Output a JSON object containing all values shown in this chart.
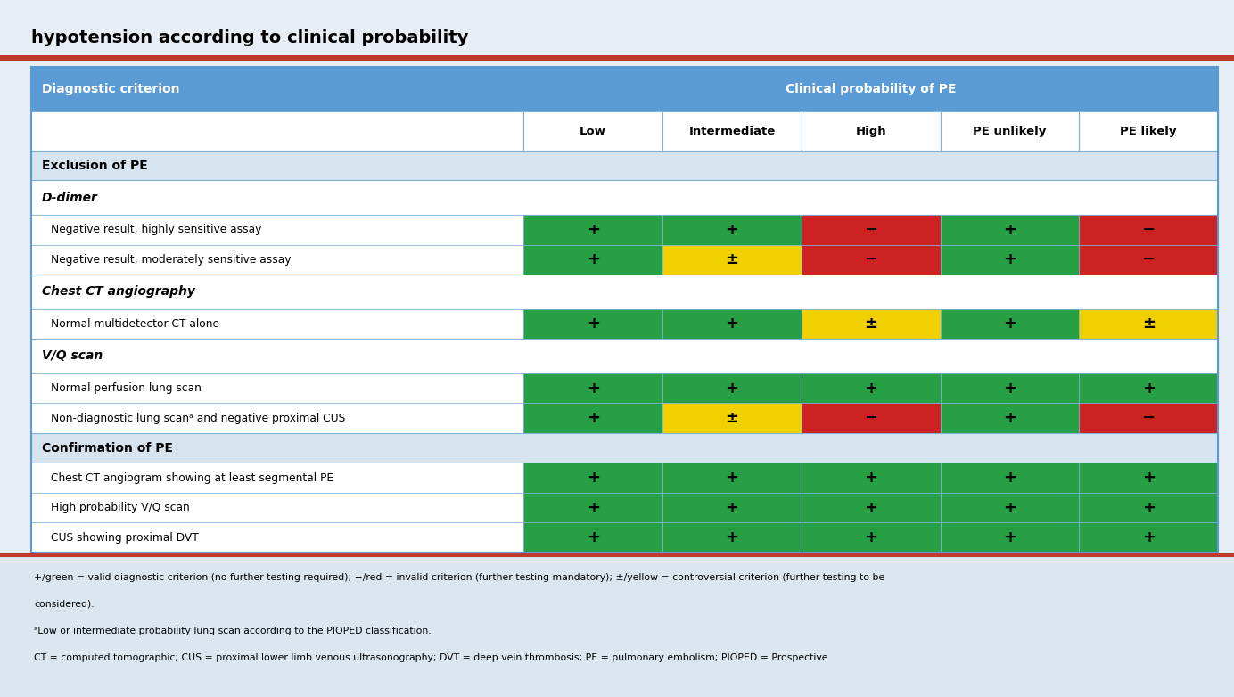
{
  "title": "hypotension according to clinical probability",
  "header_col1": "Diagnostic criterion",
  "header_col2": "Clinical probability of PE",
  "sub_headers": [
    "Low",
    "Intermediate",
    "High",
    "PE unlikely",
    "PE likely"
  ],
  "sections": [
    {
      "type": "section",
      "label": "Exclusion of PE"
    },
    {
      "type": "subsection",
      "label": "D-dimer"
    },
    {
      "type": "data",
      "label": "Negative result, highly sensitive assay",
      "cells": [
        {
          "symbol": "+",
          "color": "#27a045"
        },
        {
          "symbol": "+",
          "color": "#27a045"
        },
        {
          "symbol": "−",
          "color": "#cc2222"
        },
        {
          "symbol": "+",
          "color": "#27a045"
        },
        {
          "symbol": "−",
          "color": "#cc2222"
        }
      ]
    },
    {
      "type": "data",
      "label": "Negative result, moderately sensitive assay",
      "cells": [
        {
          "symbol": "+",
          "color": "#27a045"
        },
        {
          "symbol": "±",
          "color": "#f0d000"
        },
        {
          "symbol": "−",
          "color": "#cc2222"
        },
        {
          "symbol": "+",
          "color": "#27a045"
        },
        {
          "symbol": "−",
          "color": "#cc2222"
        }
      ]
    },
    {
      "type": "subsection",
      "label": "Chest CT angiography"
    },
    {
      "type": "data",
      "label": "Normal multidetector CT alone",
      "cells": [
        {
          "symbol": "+",
          "color": "#27a045"
        },
        {
          "symbol": "+",
          "color": "#27a045"
        },
        {
          "symbol": "±",
          "color": "#f0d000"
        },
        {
          "symbol": "+",
          "color": "#27a045"
        },
        {
          "symbol": "±",
          "color": "#f0d000"
        }
      ]
    },
    {
      "type": "subsection",
      "label": "V/Q scan"
    },
    {
      "type": "data",
      "label": "Normal perfusion lung scan",
      "cells": [
        {
          "symbol": "+",
          "color": "#27a045"
        },
        {
          "symbol": "+",
          "color": "#27a045"
        },
        {
          "symbol": "+",
          "color": "#27a045"
        },
        {
          "symbol": "+",
          "color": "#27a045"
        },
        {
          "symbol": "+",
          "color": "#27a045"
        }
      ]
    },
    {
      "type": "data",
      "label": "Non-diagnostic lung scanᵃ and negative proximal CUS",
      "cells": [
        {
          "symbol": "+",
          "color": "#27a045"
        },
        {
          "symbol": "±",
          "color": "#f0d000"
        },
        {
          "symbol": "−",
          "color": "#cc2222"
        },
        {
          "symbol": "+",
          "color": "#27a045"
        },
        {
          "symbol": "−",
          "color": "#cc2222"
        }
      ]
    },
    {
      "type": "section",
      "label": "Confirmation of PE"
    },
    {
      "type": "data",
      "label": "Chest CT angiogram showing at least segmental PE",
      "cells": [
        {
          "symbol": "+",
          "color": "#27a045"
        },
        {
          "symbol": "+",
          "color": "#27a045"
        },
        {
          "symbol": "+",
          "color": "#27a045"
        },
        {
          "symbol": "+",
          "color": "#27a045"
        },
        {
          "symbol": "+",
          "color": "#27a045"
        }
      ]
    },
    {
      "type": "data",
      "label": "High probability V/Q scan",
      "cells": [
        {
          "symbol": "+",
          "color": "#27a045"
        },
        {
          "symbol": "+",
          "color": "#27a045"
        },
        {
          "symbol": "+",
          "color": "#27a045"
        },
        {
          "symbol": "+",
          "color": "#27a045"
        },
        {
          "symbol": "+",
          "color": "#27a045"
        }
      ]
    },
    {
      "type": "data",
      "label": "CUS showing proximal DVT",
      "cells": [
        {
          "symbol": "+",
          "color": "#27a045"
        },
        {
          "symbol": "+",
          "color": "#27a045"
        },
        {
          "symbol": "+",
          "color": "#27a045"
        },
        {
          "symbol": "+",
          "color": "#27a045"
        },
        {
          "symbol": "+",
          "color": "#27a045"
        }
      ]
    }
  ],
  "footer_lines": [
    "+/green = valid diagnostic criterion (no further testing required); −/red = invalid criterion (further testing mandatory); ±/yellow = controversial criterion (further testing to be",
    "considered).",
    "ᵃLow or intermediate probability lung scan according to the PIOPED classification.",
    "CT = computed tomographic; CUS = proximal lower limb venous ultrasonography; DVT = deep vein thrombosis; PE = pulmonary embolism; PIOPED = Prospective"
  ],
  "header_bg": "#5b9bd5",
  "header_text": "#ffffff",
  "section_bg": "#d6e4f0",
  "table_border": "#5b9bd5",
  "cell_border": "#7fb3d9",
  "title_color": "#000000",
  "page_bg": "#e8eef5",
  "footer_bg": "#dce6f1",
  "red_bar_color": "#c0392b"
}
